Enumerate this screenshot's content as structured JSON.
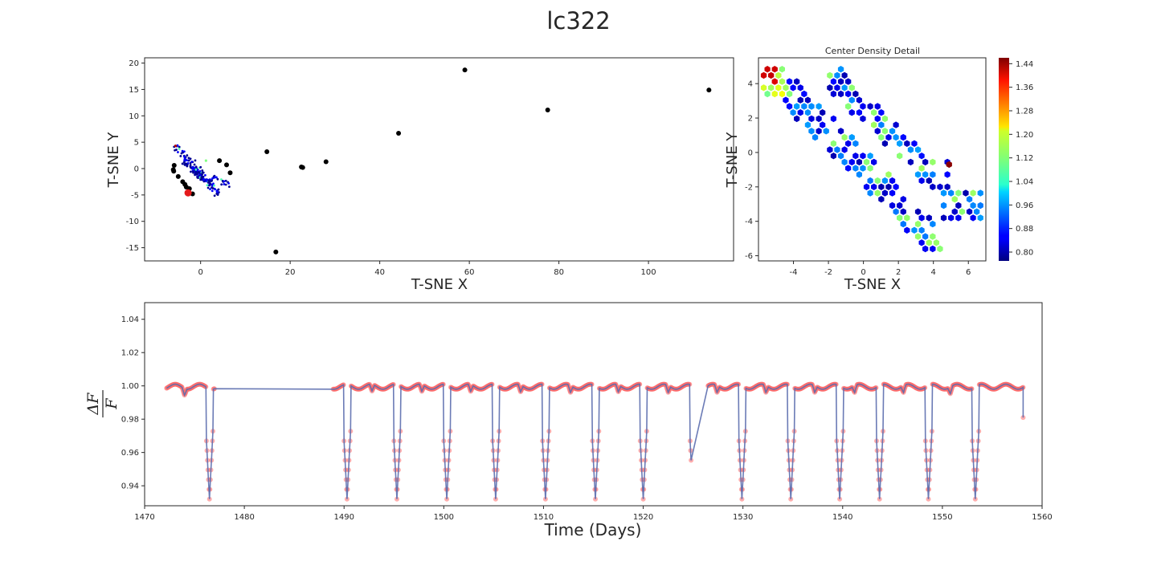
{
  "suptitle": "lc322",
  "colors": {
    "scatter_outlier": "#000000",
    "highlight": "#e41a1c",
    "lc_points": "#ff6b6b",
    "lc_line": "#5b6dae",
    "colormap": "jet"
  },
  "chart_data": [
    {
      "type": "scatter",
      "id": "tsne",
      "xlabel": "T-SNE X",
      "ylabel": "T-SNE Y",
      "xlim": [
        -12.5,
        119
      ],
      "ylim": [
        -17.5,
        21
      ],
      "xticks": [
        0,
        20,
        40,
        60,
        80,
        100
      ],
      "yticks": [
        -15,
        -10,
        -5,
        0,
        5,
        10,
        15,
        20
      ],
      "outliers": [
        {
          "x": 59,
          "y": 18.7
        },
        {
          "x": 113.5,
          "y": 14.9
        },
        {
          "x": 77.5,
          "y": 11.1
        },
        {
          "x": 44.2,
          "y": 6.7
        },
        {
          "x": 14.8,
          "y": 3.2
        },
        {
          "x": 28,
          "y": 1.3
        },
        {
          "x": 22.5,
          "y": 0.3
        },
        {
          "x": 22.8,
          "y": 0.2
        },
        {
          "x": 16.8,
          "y": -15.8
        },
        {
          "x": -5.9,
          "y": 0.6
        },
        {
          "x": -6.1,
          "y": -0.2
        },
        {
          "x": -6.0,
          "y": -0.5
        },
        {
          "x": -5.0,
          "y": -1.5
        },
        {
          "x": -4.0,
          "y": -2.5
        },
        {
          "x": -3.5,
          "y": -3.0
        },
        {
          "x": -3.2,
          "y": -3.5
        },
        {
          "x": -2.5,
          "y": -3.8
        },
        {
          "x": -1.8,
          "y": -4.8
        },
        {
          "x": 4.2,
          "y": 1.5
        },
        {
          "x": 5.8,
          "y": 0.7
        },
        {
          "x": 6.6,
          "y": -0.8
        }
      ],
      "highlight": {
        "x": -2.8,
        "y": -4.6
      }
    },
    {
      "type": "heatmap",
      "id": "density",
      "title": "Center Density Detail",
      "xlabel": "T-SNE X",
      "ylabel": "T-SNE Y",
      "xlim": [
        -6,
        7
      ],
      "ylim": [
        -6.3,
        5.5
      ],
      "xticks": [
        -4,
        -2,
        0,
        2,
        4,
        6
      ],
      "yticks": [
        -6,
        -4,
        -2,
        0,
        2,
        4
      ],
      "colorbar": {
        "min": 0.77,
        "max": 1.46,
        "ticks": [
          "0.80",
          "0.88",
          "0.96",
          "1.04",
          "1.12",
          "1.20",
          "1.28",
          "1.36",
          "1.44"
        ]
      }
    },
    {
      "type": "line",
      "id": "lightcurve",
      "xlabel": "Time (Days)",
      "ylabel": "ΔF / F",
      "ylabel_num": "ΔF",
      "ylabel_den": "F",
      "xlim": [
        1470,
        1560
      ],
      "ylim": [
        0.928,
        1.05
      ],
      "xticks": [
        1470,
        1480,
        1490,
        1500,
        1510,
        1520,
        1530,
        1540,
        1550,
        1560
      ],
      "yticks": [
        "0.94",
        "0.96",
        "0.98",
        "1.00",
        "1.02",
        "1.04"
      ],
      "baseline": 1.0,
      "eclipse_depth": 0.932,
      "segments": [
        [
          1472.2,
          1477.0
        ],
        [
          1488.9,
          1524.8
        ],
        [
          1526.5,
          1558.1
        ]
      ],
      "eclipse_times": [
        1476.5,
        1490.3,
        1495.3,
        1500.3,
        1505.2,
        1510.2,
        1515.2,
        1520.0,
        1525.0,
        1529.9,
        1534.8,
        1539.7,
        1543.7,
        1548.6,
        1553.3
      ]
    }
  ]
}
